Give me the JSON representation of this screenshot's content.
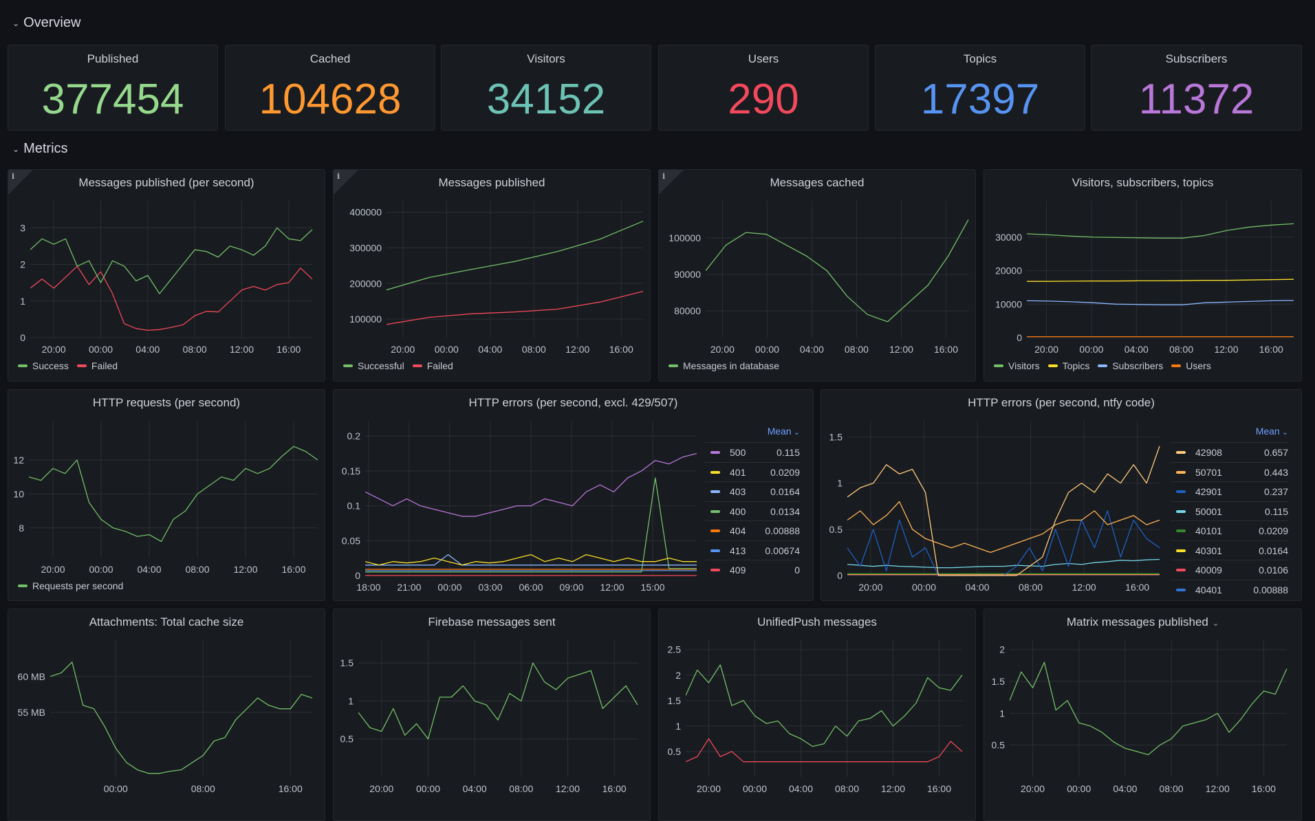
{
  "sections": {
    "overview": "Overview",
    "metrics": "Metrics"
  },
  "stats": [
    {
      "title": "Published",
      "value": "377454",
      "color": "#96d98d"
    },
    {
      "title": "Cached",
      "value": "104628",
      "color": "#ff9830"
    },
    {
      "title": "Visitors",
      "value": "34152",
      "color": "#6cc3b5"
    },
    {
      "title": "Users",
      "value": "290",
      "color": "#f2495c"
    },
    {
      "title": "Topics",
      "value": "17397",
      "color": "#5794f2"
    },
    {
      "title": "Subscribers",
      "value": "11372",
      "color": "#b877d9"
    }
  ],
  "chart_data": [
    {
      "type": "line",
      "title": "Messages published (per second)",
      "info_icon": true,
      "legend": "bottom",
      "x_range": [
        "18:00",
        "18:00"
      ],
      "x_ticks": [
        "20:00",
        "00:00",
        "04:00",
        "08:00",
        "12:00",
        "16:00"
      ],
      "ylim": [
        0,
        3.55
      ],
      "y_ticks": [
        0,
        1,
        2,
        3
      ],
      "series": [
        {
          "name": "Success",
          "color": "#73bf69",
          "values": [
            2.4,
            2.7,
            2.55,
            2.7,
            1.95,
            2.1,
            1.5,
            2.1,
            1.95,
            1.55,
            1.7,
            1.2,
            1.6,
            2.0,
            2.4,
            2.35,
            2.2,
            2.5,
            2.4,
            2.25,
            2.5,
            3.0,
            2.7,
            2.65,
            2.95
          ]
        },
        {
          "name": "Failed",
          "color": "#f2495c",
          "values": [
            1.35,
            1.6,
            1.35,
            1.65,
            1.95,
            1.45,
            1.8,
            1.2,
            0.38,
            0.25,
            0.2,
            0.22,
            0.28,
            0.35,
            0.6,
            0.72,
            0.7,
            1.0,
            1.3,
            1.4,
            1.3,
            1.45,
            1.5,
            1.9,
            1.6
          ]
        }
      ]
    },
    {
      "type": "line",
      "title": "Messages published",
      "info_icon": true,
      "legend": "bottom",
      "x_range": [
        "18:30",
        "18:00"
      ],
      "x_ticks": [
        "20:00",
        "00:00",
        "04:00",
        "08:00",
        "12:00",
        "16:00"
      ],
      "ylim": [
        48000,
        413000
      ],
      "y_ticks": [
        100000,
        200000,
        300000,
        400000
      ],
      "series": [
        {
          "name": "Successful",
          "color": "#73bf69",
          "values": [
            182000,
            217000,
            240000,
            262000,
            290000,
            325000,
            375000
          ]
        },
        {
          "name": "Failed",
          "color": "#f2495c",
          "values": [
            85000,
            105000,
            115000,
            120000,
            128000,
            148000,
            178000
          ]
        }
      ]
    },
    {
      "type": "line",
      "title": "Messages cached",
      "info_icon": true,
      "legend": "bottom",
      "x_range": [
        "18:30",
        "18:00"
      ],
      "x_ticks": [
        "20:00",
        "00:00",
        "04:00",
        "08:00",
        "12:00",
        "16:00"
      ],
      "ylim": [
        72650,
        108300
      ],
      "y_ticks": [
        80000,
        90000,
        100000
      ],
      "series": [
        {
          "name": "Messages in database",
          "color": "#73bf69",
          "values": [
            91000,
            98000,
            101500,
            101000,
            98000,
            95000,
            91000,
            84000,
            79000,
            77000,
            82000,
            87000,
            95000,
            105000
          ]
        }
      ]
    },
    {
      "type": "line",
      "title": "Visitors, subscribers, topics",
      "legend": "bottom",
      "x_range": [
        "18:15",
        "18:00"
      ],
      "x_ticks": [
        "20:00",
        "00:00",
        "04:00",
        "08:00",
        "12:00",
        "16:00"
      ],
      "ylim": [
        0,
        38800
      ],
      "y_ticks": [
        0,
        10000,
        20000,
        30000
      ],
      "series": [
        {
          "name": "Visitors",
          "color": "#73bf69",
          "values": [
            31000,
            30700,
            30300,
            30000,
            29900,
            29800,
            29700,
            29700,
            30500,
            32000,
            33000,
            33600,
            34000
          ]
        },
        {
          "name": "Topics",
          "color": "#fade2a",
          "values": [
            16800,
            16800,
            16850,
            16900,
            16900,
            16950,
            16950,
            17000,
            17100,
            17100,
            17200,
            17300,
            17400
          ]
        },
        {
          "name": "Subscribers",
          "color": "#8ab8ff",
          "values": [
            11000,
            10900,
            10700,
            10400,
            10000,
            9900,
            9800,
            9800,
            10400,
            10600,
            10800,
            11000,
            11100
          ]
        },
        {
          "name": "Users",
          "color": "#ff780a",
          "values": [
            290,
            290
          ]
        }
      ]
    },
    {
      "type": "line",
      "title": "HTTP requests (per second)",
      "legend": "bottom",
      "x_range": [
        "18:00",
        "18:00"
      ],
      "x_ticks": [
        "20:00",
        "00:00",
        "04:00",
        "08:00",
        "12:00",
        "16:00"
      ],
      "ylim": [
        6.25,
        13.9
      ],
      "y_ticks": [
        8,
        10,
        12
      ],
      "series": [
        {
          "name": "Requests per second",
          "color": "#73bf69",
          "values": [
            11,
            10.8,
            11.5,
            11.2,
            12,
            9.5,
            8.5,
            8,
            7.8,
            7.5,
            7.6,
            7.2,
            8.5,
            9,
            10,
            10.5,
            11,
            10.8,
            11.5,
            11.2,
            11.5,
            12.2,
            12.8,
            12.5,
            12.0
          ]
        }
      ]
    },
    {
      "type": "line",
      "title": "HTTP errors (per second, excl. 429/507)",
      "legend": "right-table",
      "legend_header": "Mean",
      "x_range": [
        "17:45",
        "18:15"
      ],
      "x_ticks": [
        "21:00",
        "00:00",
        "03:00",
        "06:00",
        "09:00",
        "12:00",
        "15:00",
        "18:00"
      ],
      "ylim": [
        0,
        0.212
      ],
      "y_ticks": [
        0,
        0.05,
        0.1,
        0.15,
        0.2
      ],
      "series": [
        {
          "name": "500",
          "color": "#b877d9",
          "mean": "0.115",
          "values": [
            0.12,
            0.11,
            0.1,
            0.11,
            0.1,
            0.095,
            0.09,
            0.085,
            0.085,
            0.09,
            0.095,
            0.1,
            0.1,
            0.11,
            0.105,
            0.1,
            0.12,
            0.13,
            0.12,
            0.14,
            0.15,
            0.165,
            0.16,
            0.17,
            0.175
          ]
        },
        {
          "name": "401",
          "color": "#fade2a",
          "mean": "0.0209",
          "values": [
            0.02,
            0.015,
            0.02,
            0.018,
            0.02,
            0.025,
            0.02,
            0.015,
            0.02,
            0.018,
            0.02,
            0.025,
            0.03,
            0.02,
            0.025,
            0.02,
            0.03,
            0.025,
            0.02,
            0.025,
            0.02,
            0.02,
            0.025,
            0.02,
            0.02
          ]
        },
        {
          "name": "403",
          "color": "#8ab8ff",
          "mean": "0.0164",
          "values": [
            0.015,
            0.015,
            0.015,
            0.015,
            0.015,
            0.015,
            0.03,
            0.015,
            0.015,
            0.015,
            0.015,
            0.015,
            0.015,
            0.015,
            0.015,
            0.015,
            0.015,
            0.015,
            0.015,
            0.015,
            0.015,
            0.015,
            0.015,
            0.015,
            0.015
          ]
        },
        {
          "name": "400",
          "color": "#73bf69",
          "mean": "0.0134",
          "values": [
            0.005,
            0.005,
            0.005,
            0.005,
            0.005,
            0.005,
            0.005,
            0.005,
            0.005,
            0.005,
            0.005,
            0.005,
            0.005,
            0.005,
            0.005,
            0.005,
            0.005,
            0.005,
            0.005,
            0.005,
            0.005,
            0.14,
            0.01,
            0.01,
            0.01
          ]
        },
        {
          "name": "404",
          "color": "#ff780a",
          "mean": "0.00888",
          "values": [
            0.009,
            0.009
          ]
        },
        {
          "name": "413",
          "color": "#5794f2",
          "mean": "0.00674",
          "values": [
            0.007,
            0.007
          ]
        },
        {
          "name": "409",
          "color": "#f2495c",
          "mean": "0",
          "values": [
            0,
            0
          ]
        }
      ]
    },
    {
      "type": "line",
      "title": "HTTP errors (per second, ntfy code)",
      "legend": "right-table",
      "legend_header": "Mean",
      "x_range": [
        "18:15",
        "17:40"
      ],
      "x_ticks": [
        "20:00",
        "00:00",
        "04:00",
        "08:00",
        "12:00",
        "16:00"
      ],
      "ylim": [
        0,
        1.6
      ],
      "y_ticks": [
        0,
        0.5,
        1,
        1.5
      ],
      "series": [
        {
          "name": "42908",
          "color": "#ffcb7d",
          "mean": "0.657",
          "values": [
            0.85,
            0.95,
            1.0,
            1.2,
            1.1,
            1.15,
            0.9,
            0,
            0,
            0,
            0,
            0,
            0,
            0,
            0.1,
            0.2,
            0.6,
            0.9,
            1.0,
            0.9,
            1.1,
            1.0,
            1.2,
            1.0,
            1.4
          ]
        },
        {
          "name": "50701",
          "color": "#ffb357",
          "mean": "0.443",
          "values": [
            0.6,
            0.7,
            0.55,
            0.65,
            0.8,
            0.5,
            0.4,
            0.35,
            0.3,
            0.35,
            0.3,
            0.25,
            0.3,
            0.35,
            0.4,
            0.45,
            0.55,
            0.6,
            0.6,
            0.7,
            0.55,
            0.6,
            0.65,
            0.55,
            0.6
          ]
        },
        {
          "name": "42901",
          "color": "#1f60c4",
          "mean": "0.237",
          "values": [
            0.3,
            0.1,
            0.5,
            0.05,
            0.6,
            0.2,
            0.3,
            0,
            0,
            0,
            0,
            0,
            0,
            0.1,
            0.3,
            0.05,
            0.5,
            0.1,
            0.6,
            0.3,
            0.7,
            0.2,
            0.6,
            0.4,
            0.3
          ]
        },
        {
          "name": "50001",
          "color": "#73d5e8",
          "mean": "0.115",
          "values": [
            0.12,
            0.11,
            0.1,
            0.11,
            0.1,
            0.095,
            0.09,
            0.085,
            0.085,
            0.09,
            0.095,
            0.1,
            0.1,
            0.11,
            0.105,
            0.1,
            0.12,
            0.13,
            0.12,
            0.14,
            0.15,
            0.165,
            0.16,
            0.17,
            0.175
          ]
        },
        {
          "name": "40101",
          "color": "#37872d",
          "mean": "0.0209",
          "values": [
            0.02,
            0.02
          ]
        },
        {
          "name": "40301",
          "color": "#fade2a",
          "mean": "0.0164",
          "values": [
            0.016,
            0.016
          ]
        },
        {
          "name": "40009",
          "color": "#f2495c",
          "mean": "0.0106",
          "values": [
            0.01,
            0.01
          ]
        },
        {
          "name": "40401",
          "color": "#3274d9",
          "mean": "0.00888",
          "values": [
            0.009,
            0.009
          ]
        }
      ]
    },
    {
      "type": "line",
      "title": "Attachments: Total cache size",
      "legend": "none",
      "x_range": [
        "18:00",
        "18:00"
      ],
      "x_ticks": [
        "00:00",
        "08:00",
        "16:00"
      ],
      "ylim": [
        46,
        64.1
      ],
      "y_ticks": [
        55,
        60
      ],
      "y_suffix": " MB",
      "series": [
        {
          "name": "",
          "color": "#73bf69",
          "values": [
            60,
            60.5,
            62,
            56,
            55.5,
            53,
            50,
            48,
            47,
            46.5,
            46.5,
            46.8,
            47,
            48,
            49,
            51,
            51.5,
            54,
            55.5,
            57,
            56,
            55.5,
            55.5,
            57.5,
            57
          ]
        }
      ]
    },
    {
      "type": "line",
      "title": "Firebase messages sent",
      "legend": "none",
      "x_range": [
        "18:00",
        "18:00"
      ],
      "x_ticks": [
        "20:00",
        "00:00",
        "04:00",
        "08:00",
        "12:00",
        "16:00"
      ],
      "ylim": [
        0,
        1.71
      ],
      "y_ticks": [
        0.5,
        1,
        1.5
      ],
      "series": [
        {
          "name": "",
          "color": "#73bf69",
          "values": [
            0.85,
            0.65,
            0.6,
            0.9,
            0.55,
            0.7,
            0.5,
            1.05,
            1.05,
            1.2,
            1.0,
            0.95,
            0.75,
            1.1,
            1.0,
            1.5,
            1.25,
            1.15,
            1.3,
            1.35,
            1.4,
            0.9,
            1.05,
            1.2,
            0.95
          ]
        }
      ]
    },
    {
      "type": "line",
      "title": "UnifiedPush messages",
      "legend": "none",
      "x_range": [
        "18:00",
        "18:00"
      ],
      "x_ticks": [
        "20:00",
        "00:00",
        "04:00",
        "08:00",
        "12:00",
        "16:00"
      ],
      "ylim": [
        0,
        2.55
      ],
      "y_ticks": [
        0.5,
        1,
        1.5,
        2,
        2.5
      ],
      "series": [
        {
          "name": "",
          "color": "#73bf69",
          "values": [
            1.6,
            2.1,
            1.85,
            2.2,
            1.4,
            1.5,
            1.2,
            1.05,
            1.1,
            0.85,
            0.75,
            0.6,
            0.65,
            1.0,
            0.8,
            1.1,
            1.15,
            1.3,
            1.0,
            1.2,
            1.45,
            1.95,
            1.75,
            1.7,
            2.0
          ]
        },
        {
          "name": "",
          "color": "#f2495c",
          "values": [
            0.3,
            0.4,
            0.75,
            0.4,
            0.5,
            0.3,
            0.3,
            0.3,
            0.3,
            0.3,
            0.3,
            0.3,
            0.3,
            0.3,
            0.3,
            0.3,
            0.3,
            0.3,
            0.3,
            0.3,
            0.3,
            0.3,
            0.4,
            0.7,
            0.5
          ]
        }
      ]
    },
    {
      "type": "line",
      "title": "Matrix messages published",
      "title_menu": true,
      "legend": "none",
      "x_range": [
        "18:00",
        "18:00"
      ],
      "x_ticks": [
        "20:00",
        "00:00",
        "04:00",
        "08:00",
        "12:00",
        "16:00"
      ],
      "ylim": [
        0,
        2.04
      ],
      "y_ticks": [
        0.5,
        1,
        1.5,
        2
      ],
      "series": [
        {
          "name": "",
          "color": "#73bf69",
          "values": [
            1.2,
            1.65,
            1.4,
            1.8,
            1.05,
            1.2,
            0.85,
            0.8,
            0.7,
            0.55,
            0.45,
            0.4,
            0.35,
            0.5,
            0.6,
            0.8,
            0.85,
            0.9,
            1.0,
            0.7,
            0.9,
            1.15,
            1.35,
            1.3,
            1.7
          ]
        }
      ]
    }
  ],
  "icons": {
    "row_toggle": "chevron-down-icon",
    "info": "info-icon",
    "menu": "chevron-down-icon"
  }
}
